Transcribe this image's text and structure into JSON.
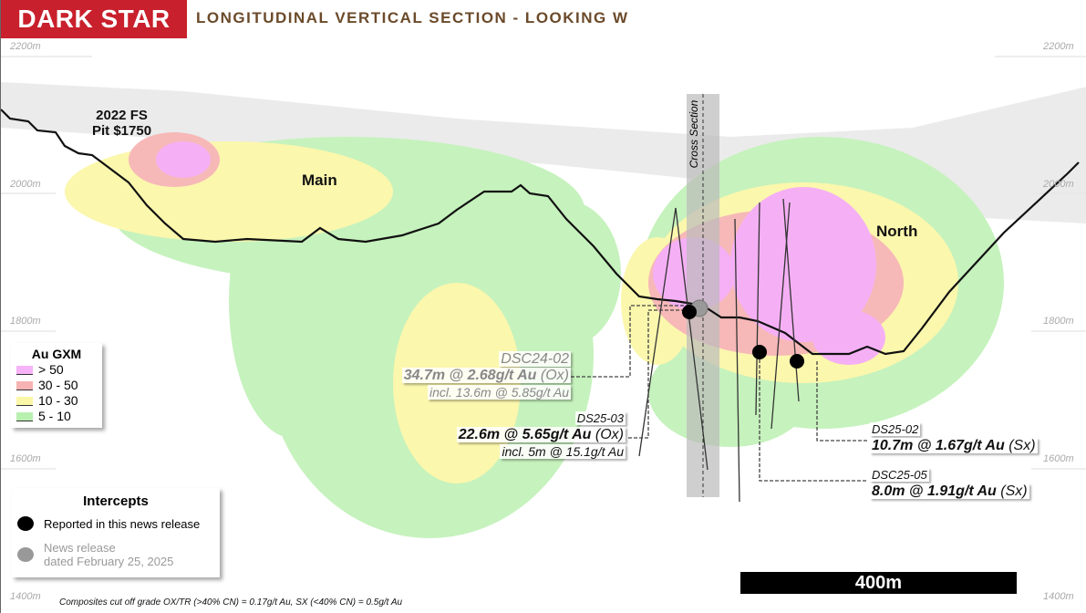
{
  "header": {
    "logo": "DARK STAR",
    "title": "LONGITUDINAL VERTICAL SECTION - LOOKING W"
  },
  "elevations": [
    "2200m",
    "2000m",
    "1800m",
    "1600m",
    "1400m"
  ],
  "labels": {
    "pit": "2022 FS",
    "pit2": "Pit $1750",
    "main": "Main",
    "north": "North",
    "cross_section": "Cross Section"
  },
  "annotations": [
    {
      "hole": "DSC24-02",
      "intercept": "34.7m @ 2.68g/t Au",
      "type": "(Ox)",
      "incl": "incl. 13.6m @ 5.85g/t Au"
    },
    {
      "hole": "DS25-03",
      "intercept": "22.6m @ 5.65g/t Au",
      "type": "(Ox)",
      "incl": "incl. 5m @ 15.1g/t Au"
    },
    {
      "hole": "DS25-02",
      "intercept": "10.7m @ 1.67g/t Au",
      "type": "(Sx)"
    },
    {
      "hole": "DSC25-05",
      "intercept": "8.0m @ 1.91g/t Au",
      "type": "(Sx)"
    }
  ],
  "grade_legend": {
    "title": "Au GXM",
    "items": [
      {
        "label": "> 50",
        "color": "#f7b3f7"
      },
      {
        "label": "30 - 50",
        "color": "#f7b3b3"
      },
      {
        "label": "10 - 30",
        "color": "#fbf7a8"
      },
      {
        "label": "5 - 10",
        "color": "#b8f0b0"
      }
    ]
  },
  "intercepts_legend": {
    "title": "Intercepts",
    "items": [
      {
        "label": "Reported in this news release",
        "color": "#000000"
      },
      {
        "label": "News release",
        "label2": "dated February 25, 2025",
        "color": "#999999"
      }
    ]
  },
  "scale": "400m",
  "footnote": "Composites cut off grade OX/TR (>40% CN) = 0.17g/t Au, SX (<40% CN) = 0.5g/t Au"
}
